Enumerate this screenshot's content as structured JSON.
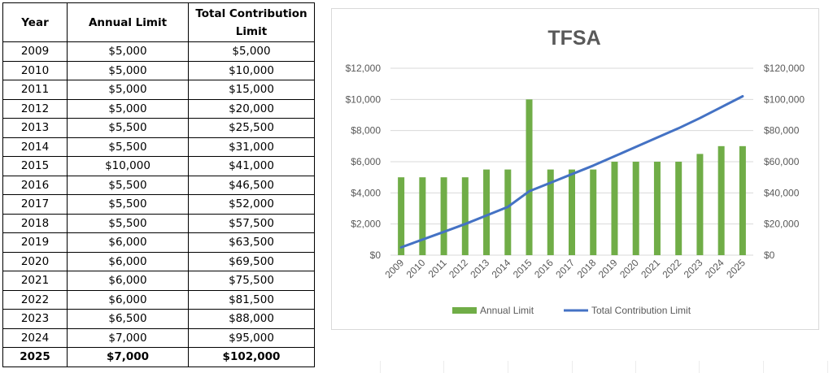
{
  "table": {
    "headers": [
      "Year",
      "Annual Limit",
      "Total Contribution Limit"
    ],
    "rows": [
      [
        "2009",
        "$5,000",
        "$5,000"
      ],
      [
        "2010",
        "$5,000",
        "$10,000"
      ],
      [
        "2011",
        "$5,000",
        "$15,000"
      ],
      [
        "2012",
        "$5,000",
        "$20,000"
      ],
      [
        "2013",
        "$5,500",
        "$25,500"
      ],
      [
        "2014",
        "$5,500",
        "$31,000"
      ],
      [
        "2015",
        "$10,000",
        "$41,000"
      ],
      [
        "2016",
        "$5,500",
        "$46,500"
      ],
      [
        "2017",
        "$5,500",
        "$52,000"
      ],
      [
        "2018",
        "$5,500",
        "$57,500"
      ],
      [
        "2019",
        "$6,000",
        "$63,500"
      ],
      [
        "2020",
        "$6,000",
        "$69,500"
      ],
      [
        "2021",
        "$6,000",
        "$75,500"
      ],
      [
        "2022",
        "$6,000",
        "$81,500"
      ],
      [
        "2023",
        "$6,500",
        "$88,000"
      ],
      [
        "2024",
        "$7,000",
        "$95,000"
      ],
      [
        "2025",
        "$7,000",
        "$102,000"
      ]
    ]
  },
  "colors": {
    "bar": "#70ad47",
    "line": "#4472c4",
    "grid": "#d9d9d9",
    "text": "#595959"
  },
  "chart_data": {
    "type": "bar",
    "title": "TFSA",
    "categories": [
      "2009",
      "2010",
      "2011",
      "2012",
      "2013",
      "2014",
      "2015",
      "2016",
      "2017",
      "2018",
      "2019",
      "2020",
      "2021",
      "2022",
      "2023",
      "2024",
      "2025"
    ],
    "series": [
      {
        "name": "Annual Limit",
        "type": "bar",
        "axis": "left",
        "values": [
          5000,
          5000,
          5000,
          5000,
          5500,
          5500,
          10000,
          5500,
          5500,
          5500,
          6000,
          6000,
          6000,
          6000,
          6500,
          7000,
          7000
        ]
      },
      {
        "name": "Total Contribution Limit",
        "type": "line",
        "axis": "right",
        "values": [
          5000,
          10000,
          15000,
          20000,
          25500,
          31000,
          41000,
          46500,
          52000,
          57500,
          63500,
          69500,
          75500,
          81500,
          88000,
          95000,
          102000
        ]
      }
    ],
    "ylim_left": [
      0,
      12000
    ],
    "ylim_right": [
      0,
      120000
    ],
    "left_ticks": [
      "$0",
      "$2,000",
      "$4,000",
      "$6,000",
      "$8,000",
      "$10,000",
      "$12,000"
    ],
    "right_ticks": [
      "$0",
      "$20,000",
      "$40,000",
      "$60,000",
      "$80,000",
      "$100,000",
      "$120,000"
    ],
    "grid": true,
    "legend": "bottom"
  }
}
